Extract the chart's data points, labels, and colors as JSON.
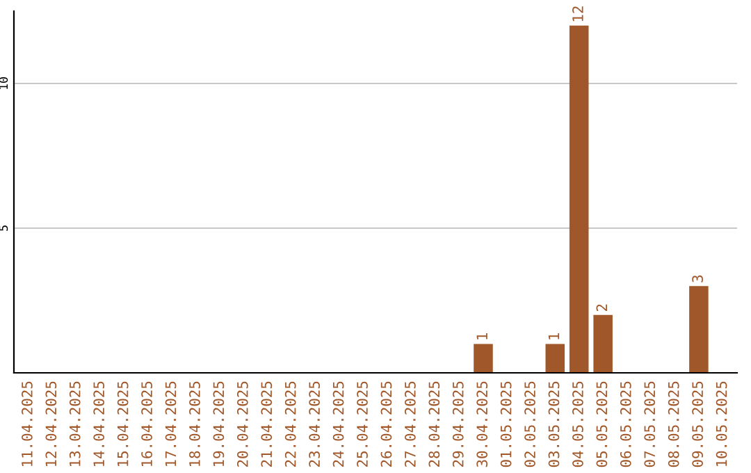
{
  "chart_data": {
    "type": "bar",
    "categories": [
      "11.04.2025",
      "12.04.2025",
      "13.04.2025",
      "14.04.2025",
      "15.04.2025",
      "16.04.2025",
      "17.04.2025",
      "18.04.2025",
      "19.04.2025",
      "20.04.2025",
      "21.04.2025",
      "22.04.2025",
      "23.04.2025",
      "24.04.2025",
      "25.04.2025",
      "26.04.2025",
      "27.04.2025",
      "28.04.2025",
      "29.04.2025",
      "30.04.2025",
      "01.05.2025",
      "02.05.2025",
      "03.05.2025",
      "04.05.2025",
      "05.05.2025",
      "06.05.2025",
      "07.05.2025",
      "08.05.2025",
      "09.05.2025",
      "10.05.2025"
    ],
    "values": [
      0,
      0,
      0,
      0,
      0,
      0,
      0,
      0,
      0,
      0,
      0,
      0,
      0,
      0,
      0,
      0,
      0,
      0,
      0,
      1,
      0,
      0,
      1,
      12,
      2,
      0,
      0,
      0,
      3,
      0
    ],
    "value_labels": [
      null,
      null,
      null,
      null,
      null,
      null,
      null,
      null,
      null,
      null,
      null,
      null,
      null,
      null,
      null,
      null,
      null,
      null,
      null,
      "1",
      null,
      null,
      "1",
      "12",
      "2",
      null,
      null,
      null,
      "3",
      null
    ],
    "color": "#a0582a",
    "ylim": [
      0,
      12.5
    ],
    "yticks": [
      5,
      10
    ],
    "grid": "y"
  }
}
